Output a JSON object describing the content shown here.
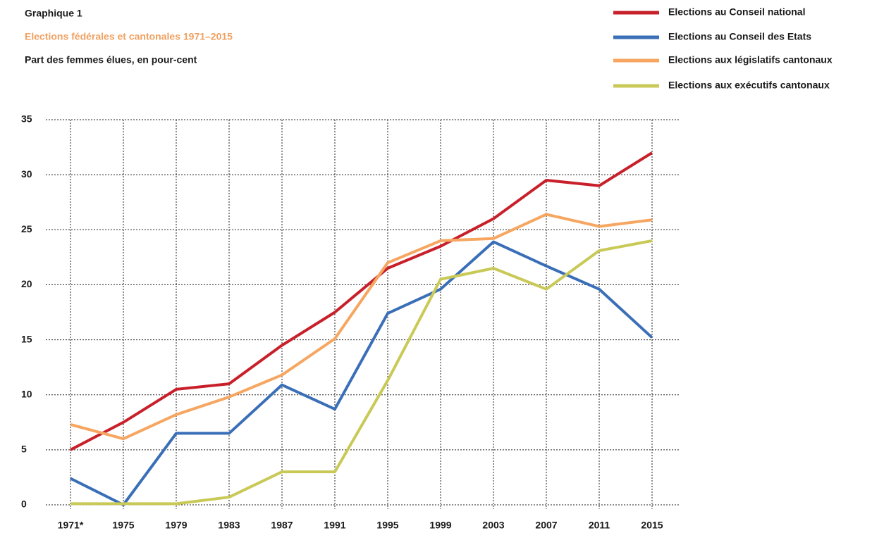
{
  "chart_data": {
    "type": "line",
    "title": "Graphique 1",
    "subtitle": "Elections fédérales et cantonales 1971–2015",
    "ylabel": "Part des femmes élues, en pour-cent",
    "subtitle_color": "#f0a060",
    "categories": [
      "1971*",
      "1975",
      "1979",
      "1983",
      "1987",
      "1991",
      "1995",
      "1999",
      "2003",
      "2007",
      "2011",
      "2015"
    ],
    "series": [
      {
        "name": "Elections au Conseil national",
        "color": "#c8202a",
        "values": [
          5.0,
          7.5,
          10.5,
          11.0,
          14.5,
          17.5,
          21.5,
          23.5,
          26.0,
          29.5,
          29.0,
          32.0
        ]
      },
      {
        "name": "Elections au Conseil des Etats",
        "color": "#3a6fb8",
        "values": [
          2.4,
          0.0,
          6.5,
          6.5,
          10.9,
          8.7,
          17.4,
          19.6,
          23.9,
          21.7,
          19.6,
          15.2
        ]
      },
      {
        "name": "Elections aux législatifs cantonaux",
        "color": "#f6a660",
        "values": [
          7.3,
          6.0,
          8.2,
          9.8,
          11.8,
          15.1,
          22.0,
          24.0,
          24.2,
          26.4,
          25.3,
          25.9
        ]
      },
      {
        "name": "Elections aux exécutifs cantonaux",
        "color": "#c9c957",
        "values": [
          0.1,
          0.1,
          0.1,
          0.7,
          3.0,
          3.0,
          11.3,
          20.5,
          21.5,
          19.6,
          23.1,
          24.0
        ]
      }
    ],
    "ylim": [
      0,
      35
    ],
    "yticks": [
      0,
      5,
      10,
      15,
      20,
      25,
      30,
      35
    ],
    "grid": true,
    "legend": "top-right"
  }
}
